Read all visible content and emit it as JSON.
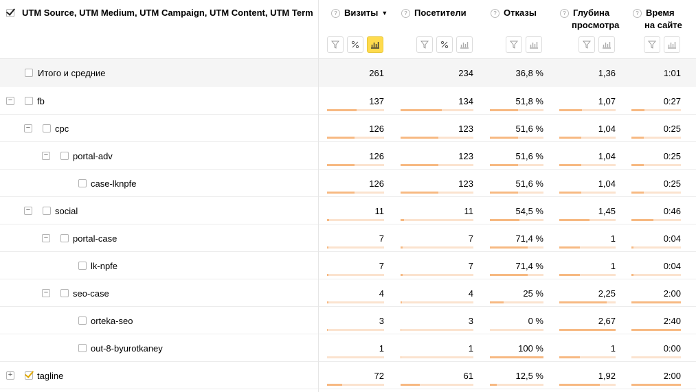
{
  "header": {
    "dims_title": "UTM Source, UTM Medium, UTM Campaign, UTM Content, UTM Term",
    "help_glyph": "?",
    "sort_glyph": "▼",
    "columns": [
      {
        "key": "visits",
        "label": "Визиты",
        "sorted": true,
        "buttons": [
          "filter-icon",
          "percent-icon",
          "bar-chart-icon"
        ],
        "active_button": "bar-chart-icon"
      },
      {
        "key": "visitors",
        "label": "Посетители",
        "buttons": [
          "filter-icon",
          "percent-icon",
          "bar-chart-icon"
        ]
      },
      {
        "key": "bounce",
        "label": "Отказы",
        "buttons": [
          "filter-icon",
          "bar-chart-icon"
        ]
      },
      {
        "key": "depth",
        "label1": "Глубина",
        "label2": "просмотра",
        "buttons": [
          "filter-icon",
          "bar-chart-icon"
        ]
      },
      {
        "key": "time",
        "label1": "Время",
        "label2": "на сайте",
        "buttons": [
          "filter-icon",
          "bar-chart-icon"
        ]
      }
    ]
  },
  "colors": {
    "accent": "#ffdb4d",
    "bar_fill": "#f7b982",
    "bar_bg": "#fbe3cf",
    "check": "#e0a800"
  },
  "total": {
    "label": "Итого и средние",
    "visits": "261",
    "visitors": "234",
    "bounce": "36,8 %",
    "depth": "1,36",
    "time": "1:01"
  },
  "rows": [
    {
      "label": "fb",
      "level": 0,
      "expand": "−",
      "checked": false,
      "visits": "137",
      "visitors": "134",
      "bounce": "51,8 %",
      "depth": "1,07",
      "time": "0:27",
      "f": [
        0.52,
        0.57,
        0.52,
        0.4,
        0.27
      ]
    },
    {
      "label": "cpc",
      "level": 1,
      "expand": "−",
      "checked": false,
      "visits": "126",
      "visitors": "123",
      "bounce": "51,6 %",
      "depth": "1,04",
      "time": "0:25",
      "f": [
        0.48,
        0.52,
        0.52,
        0.39,
        0.25
      ]
    },
    {
      "label": "portal-adv",
      "level": 2,
      "expand": "−",
      "checked": false,
      "visits": "126",
      "visitors": "123",
      "bounce": "51,6 %",
      "depth": "1,04",
      "time": "0:25",
      "f": [
        0.48,
        0.52,
        0.52,
        0.39,
        0.25
      ]
    },
    {
      "label": "case-lknpfe",
      "level": 3,
      "expand": null,
      "checked": false,
      "visits": "126",
      "visitors": "123",
      "bounce": "51,6 %",
      "depth": "1,04",
      "time": "0:25",
      "f": [
        0.48,
        0.52,
        0.52,
        0.39,
        0.25
      ]
    },
    {
      "label": "social",
      "level": 1,
      "expand": "−",
      "checked": false,
      "visits": "11",
      "visitors": "11",
      "bounce": "54,5 %",
      "depth": "1,45",
      "time": "0:46",
      "f": [
        0.04,
        0.05,
        0.55,
        0.54,
        0.45
      ]
    },
    {
      "label": "portal-case",
      "level": 2,
      "expand": "−",
      "checked": false,
      "visits": "7",
      "visitors": "7",
      "bounce": "71,4 %",
      "depth": "1",
      "time": "0:04",
      "f": [
        0.03,
        0.03,
        0.71,
        0.37,
        0.04
      ]
    },
    {
      "label": "lk-npfe",
      "level": 3,
      "expand": null,
      "checked": false,
      "visits": "7",
      "visitors": "7",
      "bounce": "71,4 %",
      "depth": "1",
      "time": "0:04",
      "f": [
        0.03,
        0.03,
        0.71,
        0.37,
        0.04
      ]
    },
    {
      "label": "seo-case",
      "level": 2,
      "expand": "−",
      "checked": false,
      "visits": "4",
      "visitors": "4",
      "bounce": "25 %",
      "depth": "2,25",
      "time": "2:00",
      "f": [
        0.02,
        0.02,
        0.25,
        0.84,
        1.0
      ]
    },
    {
      "label": "orteka-seo",
      "level": 3,
      "expand": null,
      "checked": false,
      "visits": "3",
      "visitors": "3",
      "bounce": "0 %",
      "depth": "2,67",
      "time": "2:40",
      "f": [
        0.01,
        0.01,
        0.0,
        1.0,
        1.0
      ]
    },
    {
      "label": "out-8-byurotkaney",
      "level": 3,
      "expand": null,
      "checked": false,
      "visits": "1",
      "visitors": "1",
      "bounce": "100 %",
      "depth": "1",
      "time": "0:00",
      "f": [
        0.005,
        0.005,
        1.0,
        0.37,
        0.0
      ]
    },
    {
      "label": "tagline",
      "level": 0,
      "expand": "+",
      "checked": true,
      "visits": "72",
      "visitors": "61",
      "bounce": "12,5 %",
      "depth": "1,92",
      "time": "2:00",
      "f": [
        0.27,
        0.26,
        0.13,
        0.72,
        1.0
      ]
    }
  ]
}
